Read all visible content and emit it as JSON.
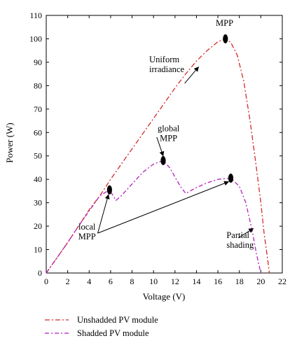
{
  "chart_data": {
    "type": "line",
    "xlabel": "Voltage (V)",
    "ylabel": "Power (W)",
    "xlim": [
      0,
      22
    ],
    "ylim": [
      0,
      110
    ],
    "xticks": [
      0,
      2,
      4,
      6,
      8,
      10,
      12,
      14,
      16,
      18,
      20,
      22
    ],
    "yticks": [
      0,
      10,
      20,
      30,
      40,
      50,
      60,
      70,
      80,
      90,
      100,
      110
    ],
    "grid": false,
    "legend_position": "bottom",
    "series": [
      {
        "name": "Unshadded PV module",
        "color": "#d42a2a",
        "x": [
          0,
          1,
          2,
          3,
          4,
          5,
          6,
          7,
          8,
          9,
          10,
          11,
          12,
          13,
          14,
          15,
          16,
          16.7,
          17.2,
          17.8,
          18.4,
          19,
          19.5,
          20,
          20.3,
          20.6,
          20.8
        ],
        "y": [
          0,
          6.5,
          13,
          20,
          27,
          33,
          40,
          46.5,
          53,
          59.5,
          66,
          72.5,
          79,
          85,
          90.5,
          95,
          98.8,
          100,
          98.5,
          93,
          82,
          65,
          48,
          30,
          17,
          7,
          0
        ]
      },
      {
        "name": "Shadded PV module",
        "color": "#b21fbd",
        "x": [
          0,
          1,
          2,
          3,
          4,
          5,
          5.9,
          6.5,
          7,
          8,
          9,
          10,
          10.9,
          11.5,
          12,
          12.5,
          13,
          14,
          15,
          16,
          17.2,
          18,
          18.6,
          19.2,
          19.6,
          20
        ],
        "y": [
          0,
          6.5,
          13,
          20,
          26.5,
          33,
          35.5,
          31,
          33,
          38,
          43,
          46.5,
          48,
          45,
          41,
          37,
          34,
          36.5,
          38.5,
          40,
          40.5,
          37,
          30,
          18,
          8,
          0
        ]
      }
    ],
    "markers": [
      {
        "x": 16.7,
        "y": 100
      },
      {
        "x": 10.9,
        "y": 48
      },
      {
        "x": 5.9,
        "y": 35.5
      },
      {
        "x": 17.2,
        "y": 40.5
      }
    ],
    "annotations": [
      {
        "lines": [
          "MPP"
        ],
        "x": 15.8,
        "y": 105.5,
        "anchor": "start"
      },
      {
        "lines": [
          "Uniform",
          "irradiance"
        ],
        "x": 9.6,
        "y": 90,
        "anchor": "start"
      },
      {
        "lines": [
          "global",
          "MPP"
        ],
        "x": 11.4,
        "y": 60.5,
        "anchor": "middle"
      },
      {
        "lines": [
          "local",
          "MPP"
        ],
        "x": 3.8,
        "y": 18.5,
        "anchor": "middle"
      },
      {
        "lines": [
          "Partial",
          "shading"
        ],
        "x": 16.8,
        "y": 15,
        "anchor": "start"
      }
    ],
    "arrows": [
      {
        "from": [
          12.9,
          81
        ],
        "to": [
          14.2,
          88
        ]
      },
      {
        "from": [
          10.3,
          58
        ],
        "to": [
          10.9,
          50
        ]
      },
      {
        "from": [
          4.8,
          17
        ],
        "to": [
          5.8,
          33.5
        ]
      },
      {
        "from": [
          4.8,
          17
        ],
        "to": [
          17,
          39
        ]
      },
      {
        "from": [
          17.9,
          15
        ],
        "to": [
          19.3,
          19
        ]
      }
    ],
    "legend": [
      {
        "label": "Unshadded PV module",
        "color": "#d42a2a"
      },
      {
        "label": "Shadded PV module",
        "color": "#b21fbd"
      }
    ]
  }
}
